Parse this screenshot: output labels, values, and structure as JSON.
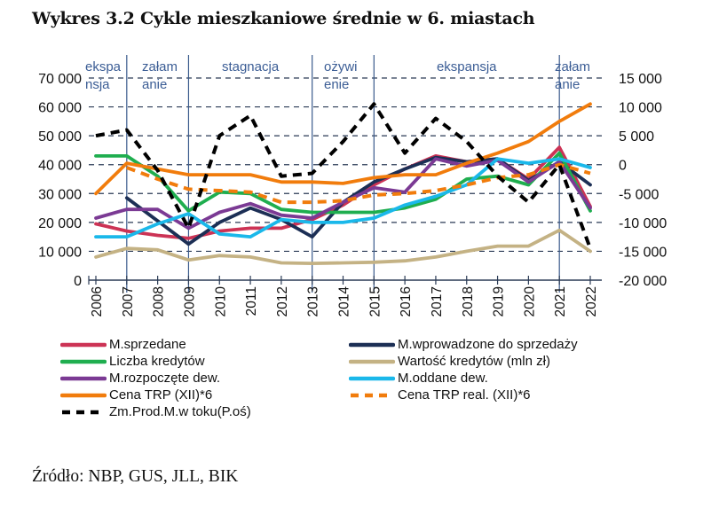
{
  "title": "Wykres 3.2 Cykle mieszkaniowe średnie w 6. miastach",
  "source": "Źródło: NBP, GUS, JLL, BIK",
  "chart_data": {
    "type": "line",
    "title": "Wykres 3.2 Cykle mieszkaniowe średnie w 6. miastach",
    "x": [
      "2006",
      "2007",
      "2008",
      "2009",
      "2010",
      "2011",
      "2012",
      "2013",
      "2014",
      "2015",
      "2016",
      "2017",
      "2018",
      "2019",
      "2020",
      "2021",
      "2022"
    ],
    "y_left": {
      "ylim": [
        0,
        70000
      ],
      "ticks": [
        0,
        10000,
        20000,
        30000,
        40000,
        50000,
        60000,
        70000
      ],
      "tick_labels": [
        "0",
        "10 000",
        "20 000",
        "30 000",
        "40 000",
        "50 000",
        "60 000",
        "70 000"
      ]
    },
    "y_right": {
      "ylim": [
        -20000,
        15000
      ],
      "ticks": [
        -20000,
        -15000,
        -10000,
        -5000,
        0,
        5000,
        10000,
        15000
      ],
      "tick_labels": [
        "-20 000",
        "-15 000",
        "-10 000",
        "-5 000",
        "0",
        "5 000",
        "10 000",
        "15 000"
      ]
    },
    "grid": "horizontal dashed",
    "phases": [
      {
        "label_line1": "ekspa",
        "label_line2": "nsja",
        "from": "2006",
        "to": "2007"
      },
      {
        "label_line1": "załam",
        "label_line2": "anie",
        "from": "2007",
        "to": "2009"
      },
      {
        "label_line1": "stagnacja",
        "label_line2": "",
        "from": "2009",
        "to": "2013"
      },
      {
        "label_line1": "ożywi",
        "label_line2": "enie",
        "from": "2013",
        "to": "2015"
      },
      {
        "label_line1": "ekspansja",
        "label_line2": "",
        "from": "2015",
        "to": "2021"
      },
      {
        "label_line1": "załam",
        "label_line2": "anie",
        "from": "2021",
        "to": "2022"
      }
    ],
    "phase_boundaries": [
      "2007",
      "2009",
      "2013",
      "2015",
      "2021"
    ],
    "series": [
      {
        "name": "M.sprzedane",
        "color": "#cc3355",
        "dash": false,
        "axis": "left",
        "values": [
          19500,
          17000,
          15500,
          14500,
          17000,
          18000,
          18000,
          21000,
          26000,
          33000,
          38500,
          43000,
          41000,
          42000,
          35000,
          46000,
          25500
        ]
      },
      {
        "name": "M.wprowadzone do sprzedaży",
        "color": "#1c2f55",
        "dash": false,
        "axis": "left",
        "values": [
          null,
          28500,
          20500,
          12500,
          20000,
          25000,
          21000,
          15000,
          27000,
          34000,
          38500,
          42500,
          41000,
          42000,
          34500,
          41000,
          33000
        ]
      },
      {
        "name": "Liczba kredytów",
        "color": "#1fae4f",
        "dash": false,
        "axis": "left",
        "values": [
          43000,
          43000,
          36000,
          24000,
          30500,
          30000,
          24500,
          23500,
          23500,
          23500,
          25000,
          28000,
          35000,
          36000,
          33000,
          44000,
          24000
        ]
      },
      {
        "name": "Wartość kredytów (mln zł)",
        "color": "#c4b284",
        "dash": false,
        "axis": "left",
        "values": [
          8000,
          11000,
          10500,
          7000,
          8500,
          8000,
          6000,
          5800,
          6000,
          6200,
          6700,
          8000,
          10000,
          11800,
          11800,
          17300,
          10000
        ]
      },
      {
        "name": "M.rozpoczęte dew.",
        "color": "#7b3a94",
        "dash": false,
        "axis": "left",
        "values": [
          21500,
          24500,
          24500,
          18000,
          23500,
          26500,
          22500,
          21500,
          27000,
          32000,
          30500,
          42000,
          39500,
          41500,
          34000,
          41000,
          25000
        ]
      },
      {
        "name": "M.oddane dew.",
        "color": "#1ab8ea",
        "dash": false,
        "axis": "left",
        "values": [
          15000,
          15000,
          19500,
          23000,
          16000,
          15000,
          21000,
          20000,
          20000,
          21500,
          26000,
          29000,
          33000,
          42000,
          40500,
          42000,
          39000
        ]
      },
      {
        "name": "Cena TRP (XII)*6",
        "color": "#f17c0c",
        "dash": false,
        "axis": "left",
        "values": [
          30000,
          40500,
          38500,
          36500,
          36500,
          36500,
          34000,
          34000,
          33500,
          35500,
          36500,
          36500,
          40500,
          44000,
          48000,
          55000,
          61000
        ]
      },
      {
        "name": "Cena TRP real. (XII)*6",
        "color": "#f17c0c",
        "dash": true,
        "axis": "left",
        "values": [
          null,
          39000,
          35000,
          31500,
          31000,
          30500,
          27000,
          27000,
          27500,
          29500,
          30000,
          31000,
          33000,
          35500,
          36500,
          40000,
          37000
        ]
      },
      {
        "name": "Zm.Prod.M.w toku(P.oś)",
        "color": "#000000",
        "dash": true,
        "axis": "right",
        "values": [
          5000,
          6000,
          -1000,
          -11000,
          5000,
          8500,
          -2000,
          -1500,
          4000,
          10500,
          2000,
          8000,
          4000,
          -2000,
          -6500,
          0,
          -14500
        ]
      }
    ],
    "legend": "bottom, two columns"
  }
}
